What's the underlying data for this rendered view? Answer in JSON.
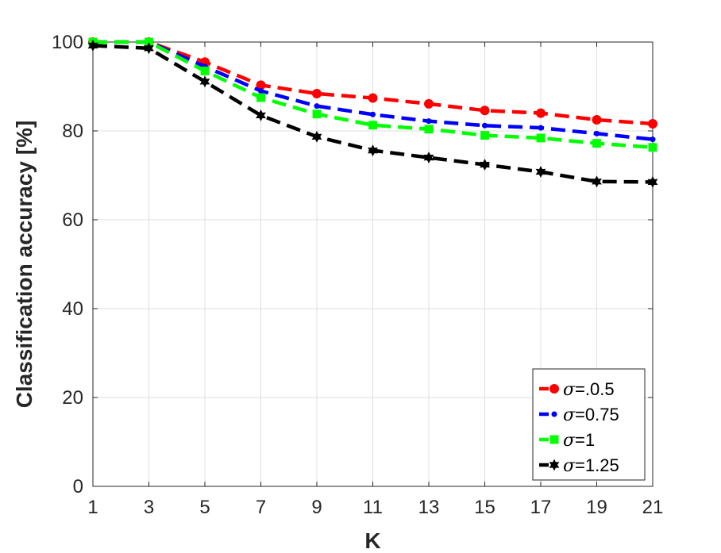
{
  "chart_data": {
    "type": "line",
    "title": "",
    "xlabel": "K",
    "ylabel": "Classification accuracy [%]",
    "x": [
      1,
      3,
      5,
      7,
      9,
      11,
      13,
      15,
      17,
      19,
      21
    ],
    "xticks": [
      "1",
      "3",
      "5",
      "7",
      "9",
      "11",
      "13",
      "15",
      "17",
      "19",
      "21"
    ],
    "yticks": [
      "0",
      "20",
      "40",
      "60",
      "80",
      "100"
    ],
    "xlim": [
      1,
      21
    ],
    "ylim": [
      0,
      100
    ],
    "grid": true,
    "legend_position": "bottom-right",
    "series": [
      {
        "name": "σ=.0.5",
        "color": "#ff0000",
        "marker": "circle",
        "values": [
          100,
          100,
          95.5,
          90.3,
          88.4,
          87.4,
          86.1,
          84.6,
          84.0,
          82.5,
          81.6
        ]
      },
      {
        "name": "σ=0.75",
        "color": "#0000ff",
        "marker": "dot",
        "values": [
          100,
          100,
          94.5,
          89.0,
          85.6,
          83.7,
          82.2,
          81.2,
          80.7,
          79.4,
          78.1
        ]
      },
      {
        "name": "σ=1",
        "color": "#00ff00",
        "marker": "square",
        "values": [
          100,
          100,
          93.5,
          87.5,
          83.8,
          81.3,
          80.4,
          79.0,
          78.4,
          77.2,
          76.3
        ]
      },
      {
        "name": "σ=1.25",
        "color": "#000000",
        "marker": "hexagram",
        "values": [
          99.2,
          98.6,
          91.1,
          83.5,
          78.7,
          75.6,
          74.0,
          72.4,
          70.8,
          68.6,
          68.5
        ]
      }
    ]
  }
}
